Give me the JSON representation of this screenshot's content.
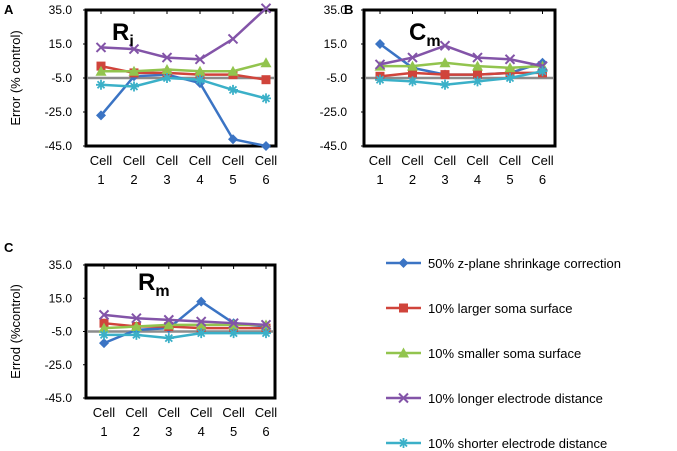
{
  "chart_data": {
    "type": "line",
    "y_unit_label": "",
    "categories": [
      [
        "Cell",
        "1"
      ],
      [
        "Cell",
        "2"
      ],
      [
        "Cell",
        "3"
      ],
      [
        "Cell",
        "4"
      ],
      [
        "Cell",
        "5"
      ],
      [
        "Cell",
        "6"
      ]
    ],
    "yticks": [
      "35.0",
      "15.0",
      "-5.0",
      "-25.0",
      "-45.0"
    ],
    "ylim": [
      -45,
      35
    ],
    "series_meta": [
      {
        "name": "50% z-plane shrinkage correction",
        "color": "#3b74c4",
        "marker": "diamond"
      },
      {
        "name": "10% larger soma surface",
        "color": "#d0443b",
        "marker": "square"
      },
      {
        "name": "10% smaller soma surface",
        "color": "#92c44e",
        "marker": "triangle"
      },
      {
        "name": "10% longer electrode distance",
        "color": "#8354a8",
        "marker": "x"
      },
      {
        "name": "10% shorter electrode distance",
        "color": "#3bb0c8",
        "marker": "star"
      }
    ],
    "panels": [
      {
        "letter": "A",
        "title_main": "R",
        "title_sub": "i",
        "ylabel": "Error (% control)",
        "series": [
          {
            "name": "50% z-plane shrinkage correction",
            "values": [
              -27,
              -4,
              -3,
              -8,
              -41,
              -45
            ]
          },
          {
            "name": "10% larger soma surface",
            "values": [
              2,
              -2,
              -2,
              -3,
              -3,
              -6
            ]
          },
          {
            "name": "10% smaller soma surface",
            "values": [
              -1,
              -1,
              0,
              -1,
              -1,
              4
            ]
          },
          {
            "name": "10% longer electrode distance",
            "values": [
              13,
              12,
              7,
              6,
              18,
              36
            ]
          },
          {
            "name": "10% shorter electrode distance",
            "values": [
              -9,
              -10,
              -5,
              -6,
              -12,
              -17
            ]
          }
        ]
      },
      {
        "letter": "B",
        "title_main": "C",
        "title_sub": "m",
        "ylabel": "",
        "series": [
          {
            "name": "50% z-plane shrinkage correction",
            "values": [
              15,
              1,
              -3,
              -3,
              -2,
              4
            ]
          },
          {
            "name": "10% larger soma surface",
            "values": [
              -4,
              -2,
              -3,
              -3,
              -2,
              -2
            ]
          },
          {
            "name": "10% smaller soma surface",
            "values": [
              2,
              2,
              4,
              2,
              1,
              2
            ]
          },
          {
            "name": "10% longer electrode distance",
            "values": [
              3,
              7,
              14,
              7,
              6,
              2
            ]
          },
          {
            "name": "10% shorter electrode distance",
            "values": [
              -6,
              -7,
              -9,
              -7,
              -5,
              -1
            ]
          }
        ]
      },
      {
        "letter": "C",
        "title_main": "R",
        "title_sub": "m",
        "ylabel": "Errod (%control)",
        "series": [
          {
            "name": "50% z-plane shrinkage correction",
            "values": [
              -12,
              -4,
              -3,
              13,
              0,
              -2
            ]
          },
          {
            "name": "10% larger soma surface",
            "values": [
              0,
              -2,
              -2,
              -3,
              -3,
              -3
            ]
          },
          {
            "name": "10% smaller soma surface",
            "values": [
              -3,
              -2,
              -1,
              -1,
              -1,
              -1
            ]
          },
          {
            "name": "10% longer electrode distance",
            "values": [
              5,
              3,
              2,
              1,
              0,
              -1
            ]
          },
          {
            "name": "10% shorter electrode distance",
            "values": [
              -7,
              -7,
              -9,
              -6,
              -6,
              -6
            ]
          }
        ]
      }
    ]
  }
}
